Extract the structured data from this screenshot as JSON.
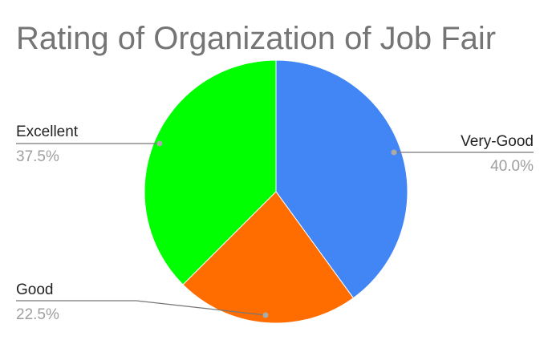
{
  "chart_data": {
    "type": "pie",
    "title": "Rating of Organization of Job Fair",
    "slices": [
      {
        "label": "Very-Good",
        "value": 40.0,
        "display": "40.0%",
        "color": "#4285F4"
      },
      {
        "label": "Good",
        "value": 22.5,
        "display": "22.5%",
        "color": "#FF6D00"
      },
      {
        "label": "Excellent",
        "value": 37.5,
        "display": "37.5%",
        "color": "#00FF00"
      }
    ],
    "start_angle": "top",
    "direction": "clockwise",
    "legend": "none"
  }
}
